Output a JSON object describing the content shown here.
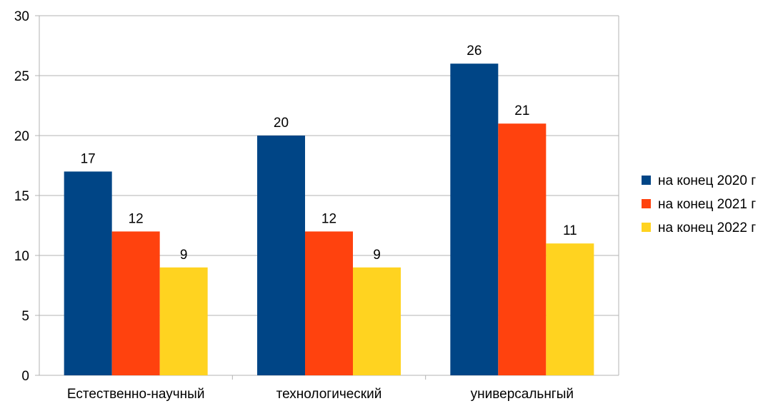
{
  "chart_data": {
    "type": "bar",
    "title": "",
    "xlabel": "",
    "ylabel": "",
    "categories": [
      "Естественно-научный",
      "технологический",
      "универсальнгый"
    ],
    "series": [
      {
        "name": "на конец 2020 г",
        "color": "#004586",
        "values": [
          17,
          20,
          26
        ]
      },
      {
        "name": "на конец 2021 г",
        "color": "#ff420e",
        "values": [
          12,
          12,
          21
        ]
      },
      {
        "name": "на конец 2022 г",
        "color": "#ffd320",
        "values": [
          9,
          9,
          11
        ]
      }
    ],
    "ylim": [
      0,
      30
    ],
    "yticks": [
      0,
      5,
      10,
      15,
      20,
      25,
      30
    ],
    "grid": true,
    "gridColor": "#b3b3b3",
    "data_labels": true,
    "legend_position": "right"
  }
}
